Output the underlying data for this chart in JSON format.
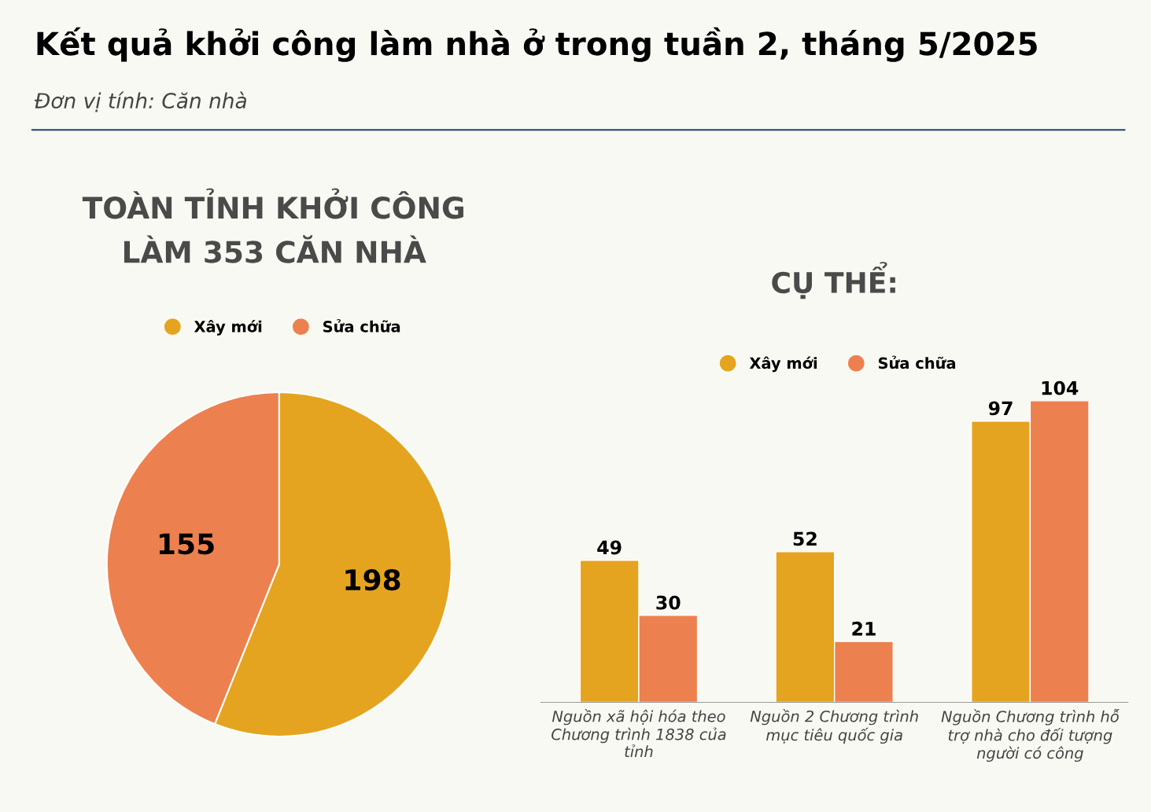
{
  "chart_data": [
    {
      "type": "pie",
      "title": "Kết quả khởi công làm nhà ở trong tuần 2, tháng 5/2025",
      "subtitle": "Đơn vị tính: Căn nhà",
      "annotations": [
        "TOÀN TỈNH KHỞI CÔNG\nLÀM 353 CĂN NHÀ"
      ],
      "categories": [
        "Xây mới",
        "Sửa chữa"
      ],
      "values": [
        198,
        155
      ],
      "colors": [
        "#e5a41f",
        "#ec814f"
      ],
      "data_labels": true,
      "legend": "top"
    },
    {
      "type": "bar",
      "title": "CỤ THỂ:",
      "categories": [
        "Nguồn xã hội hóa theo Chương trình 1838 của tỉnh",
        "Nguồn 2 Chương trình mục tiêu quốc gia",
        "Nguồn Chương trình hỗ trợ nhà cho đối tượng người có công"
      ],
      "series": [
        {
          "name": "Xây mới",
          "color": "#e5a41f",
          "values": [
            49,
            52,
            97
          ]
        },
        {
          "name": "Sửa chữa",
          "color": "#ec814f",
          "values": [
            30,
            21,
            104
          ]
        }
      ],
      "data_labels": true,
      "legend": "top",
      "tick_labels": "x"
    }
  ]
}
